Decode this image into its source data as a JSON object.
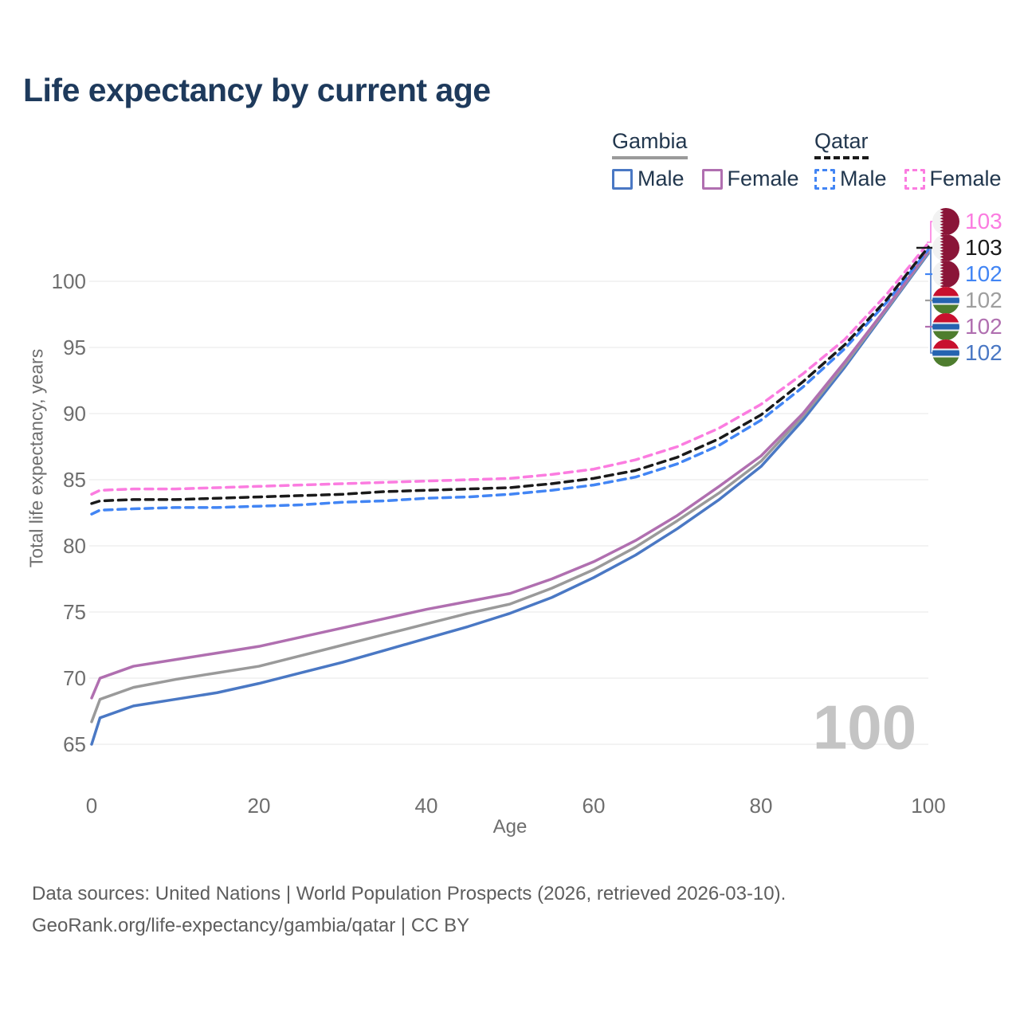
{
  "title": "Life expectancy by current age",
  "legend": {
    "groups": [
      {
        "label": "Gambia",
        "line_style": "solid",
        "underline_color": "#9a9a9a",
        "items": [
          {
            "label": "Male",
            "color": "#4a78c4"
          },
          {
            "label": "Female",
            "color": "#b06fb0"
          }
        ]
      },
      {
        "label": "Qatar",
        "line_style": "dashed",
        "underline_color": "#1a1a1a",
        "items": [
          {
            "label": "Male",
            "color": "#4285f4"
          },
          {
            "label": "Female",
            "color": "#fb7ce0"
          }
        ]
      }
    ]
  },
  "y_axis": {
    "title": "Total life expectancy, years",
    "ticks": [
      100,
      95,
      90,
      85,
      80,
      75,
      70,
      65
    ]
  },
  "x_axis": {
    "title": "Age",
    "ticks": [
      0,
      20,
      40,
      60,
      80,
      100
    ]
  },
  "watermark": "100",
  "end_labels": [
    {
      "value": "103",
      "color": "#fb7ce0",
      "flag": "qatar",
      "series": "Qatar Female"
    },
    {
      "value": "103",
      "color": "#1a1a1a",
      "flag": "qatar",
      "series": "Qatar (both sexes)"
    },
    {
      "value": "102",
      "color": "#4285f4",
      "flag": "qatar",
      "series": "Qatar Male"
    },
    {
      "value": "102",
      "color": "#9e9e9e",
      "flag": "gambia",
      "series": "Gambia (both sexes)"
    },
    {
      "value": "102",
      "color": "#b06fb0",
      "flag": "gambia",
      "series": "Gambia Female"
    },
    {
      "value": "102",
      "color": "#4a78c4",
      "flag": "gambia",
      "series": "Gambia Male"
    }
  ],
  "flag_colors": {
    "qatar": {
      "maroon": "#8a1538",
      "white": "#f2f2f2"
    },
    "gambia": {
      "red": "#c8102e",
      "blue": "#2563b0",
      "green": "#4e7d2e",
      "white": "#f2f2f2"
    }
  },
  "footer": {
    "line1": "Data sources: United Nations | World Population Prospects (2026, retrieved 2026-03-10).",
    "line2": "GeoRank.org/life-expectancy/gambia/qatar | CC BY"
  },
  "chart_data": {
    "type": "line",
    "title": "Life expectancy by current age",
    "xlabel": "Age",
    "ylabel": "Total life expectancy, years",
    "xlim": [
      0,
      100
    ],
    "ylim": [
      63,
      104
    ],
    "grid": "horizontal-only",
    "legend_position": "top-right",
    "x": [
      0,
      1,
      5,
      10,
      15,
      20,
      25,
      30,
      35,
      40,
      45,
      50,
      55,
      60,
      65,
      70,
      75,
      80,
      85,
      90,
      95,
      100
    ],
    "series": [
      {
        "name": "Gambia Male",
        "country": "Gambia",
        "sex": "male",
        "line_style": "solid",
        "color": "#4a78c4",
        "values": [
          65.0,
          67.0,
          67.9,
          68.4,
          68.9,
          69.6,
          70.4,
          71.2,
          72.1,
          73.0,
          73.9,
          74.9,
          76.1,
          77.6,
          79.3,
          81.3,
          83.5,
          86.0,
          89.5,
          93.5,
          97.8,
          102.1
        ]
      },
      {
        "name": "Gambia (both sexes)",
        "country": "Gambia",
        "sex": "all",
        "line_style": "solid",
        "color": "#9a9a9a",
        "values": [
          66.7,
          68.4,
          69.3,
          69.9,
          70.4,
          70.9,
          71.7,
          72.5,
          73.3,
          74.1,
          74.9,
          75.6,
          76.8,
          78.2,
          79.9,
          81.9,
          84.0,
          86.4,
          89.8,
          93.7,
          97.9,
          102.2
        ]
      },
      {
        "name": "Gambia Female",
        "country": "Gambia",
        "sex": "female",
        "line_style": "solid",
        "color": "#b06fb0",
        "values": [
          68.5,
          70.0,
          70.9,
          71.4,
          71.9,
          72.4,
          73.1,
          73.8,
          74.5,
          75.2,
          75.8,
          76.4,
          77.5,
          78.8,
          80.4,
          82.3,
          84.5,
          86.8,
          90.0,
          93.9,
          98.0,
          102.3
        ]
      },
      {
        "name": "Qatar Male",
        "country": "Qatar",
        "sex": "male",
        "line_style": "dashed",
        "color": "#4285f4",
        "values": [
          82.4,
          82.7,
          82.8,
          82.9,
          82.9,
          83.0,
          83.1,
          83.3,
          83.4,
          83.6,
          83.7,
          83.9,
          84.2,
          84.6,
          85.2,
          86.2,
          87.6,
          89.5,
          92.0,
          94.9,
          98.4,
          102.4
        ]
      },
      {
        "name": "Qatar (both sexes)",
        "country": "Qatar",
        "sex": "all",
        "line_style": "dashed",
        "color": "#1a1a1a",
        "values": [
          83.2,
          83.4,
          83.5,
          83.5,
          83.6,
          83.7,
          83.8,
          83.9,
          84.1,
          84.2,
          84.3,
          84.4,
          84.7,
          85.1,
          85.7,
          86.7,
          88.1,
          89.9,
          92.4,
          95.2,
          98.6,
          102.6
        ]
      },
      {
        "name": "Qatar Female",
        "country": "Qatar",
        "sex": "female",
        "line_style": "dashed",
        "color": "#fb7ce0",
        "values": [
          83.9,
          84.2,
          84.3,
          84.3,
          84.4,
          84.5,
          84.6,
          84.7,
          84.8,
          84.9,
          85.0,
          85.1,
          85.4,
          85.8,
          86.5,
          87.5,
          88.9,
          90.7,
          93.0,
          95.6,
          99.0,
          102.9
        ]
      }
    ]
  }
}
